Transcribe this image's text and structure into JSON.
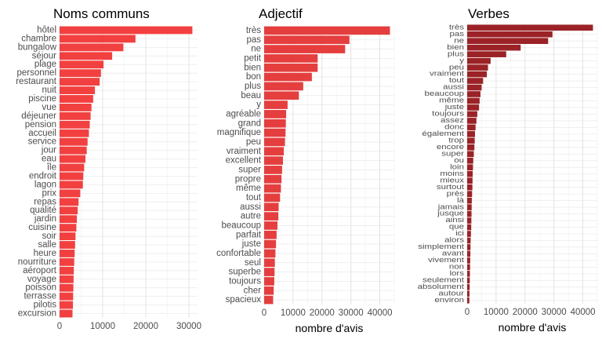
{
  "chart_data": [
    {
      "type": "bar",
      "orientation": "horizontal",
      "title": "Noms communs",
      "xlabel": "",
      "ylabel": "",
      "xlim": [
        0,
        32000
      ],
      "xticks": [
        0,
        10000,
        20000,
        30000
      ],
      "grid": true,
      "color": "#F24040",
      "categories": [
        "hôtel",
        "chambre",
        "bungalow",
        "séjour",
        "plage",
        "personnel",
        "restaurant",
        "nuit",
        "piscine",
        "vue",
        "déjeuner",
        "pension",
        "accueil",
        "service",
        "jour",
        "eau",
        "île",
        "endroit",
        "lagon",
        "prix",
        "repas",
        "qualité",
        "jardin",
        "cuisine",
        "soir",
        "salle",
        "heure",
        "nourriture",
        "aéroport",
        "voyage",
        "poisson",
        "terrasse",
        "pilotis",
        "excursion"
      ],
      "values": [
        30800,
        17600,
        14800,
        12200,
        10200,
        9600,
        9300,
        8200,
        7800,
        7400,
        7200,
        7000,
        6800,
        6500,
        6300,
        6000,
        5700,
        5500,
        5400,
        4800,
        4400,
        4200,
        4000,
        3900,
        3700,
        3600,
        3500,
        3400,
        3300,
        3250,
        3200,
        3150,
        3100,
        3000
      ]
    },
    {
      "type": "bar",
      "orientation": "horizontal",
      "title": "Adjectif",
      "xlabel": "nombre d'avis",
      "ylabel": "",
      "xlim": [
        0,
        45000
      ],
      "xticks": [
        0,
        10000,
        20000,
        30000,
        40000
      ],
      "grid": true,
      "color": "#E53E3E",
      "categories": [
        "très",
        "pas",
        "ne",
        "petit",
        "bien",
        "bon",
        "plus",
        "beau",
        "y",
        "agréable",
        "grand",
        "magnifique",
        "peu",
        "vraiment",
        "excellent",
        "super",
        "propre",
        "même",
        "tout",
        "aussi",
        "autre",
        "beaucoup",
        "parfait",
        "juste",
        "confortable",
        "seul",
        "superbe",
        "toujours",
        "cher",
        "spacieux"
      ],
      "values": [
        43500,
        29500,
        28000,
        18500,
        18500,
        16500,
        13500,
        12000,
        8100,
        7600,
        7500,
        7400,
        7200,
        6800,
        6500,
        6200,
        6000,
        5800,
        5500,
        5000,
        4900,
        4600,
        4300,
        4100,
        3900,
        3700,
        3600,
        3500,
        3300,
        3100
      ]
    },
    {
      "type": "bar",
      "orientation": "horizontal",
      "title": "Verbes",
      "xlabel": "nombre d'avis",
      "ylabel": "",
      "xlim": [
        0,
        45000
      ],
      "xticks": [
        0,
        10000,
        20000,
        30000,
        40000
      ],
      "grid": true,
      "color": "#9B2226",
      "categories": [
        "très",
        "pas",
        "ne",
        "bien",
        "plus",
        "y",
        "peu",
        "vraiment",
        "tout",
        "aussi",
        "beaucoup",
        "même",
        "juste",
        "toujours",
        "assez",
        "donc",
        "également",
        "trop",
        "encore",
        "super",
        "ou",
        "loin",
        "moins",
        "mieux",
        "surtout",
        "près",
        "là",
        "jamais",
        "jusque",
        "ainsi",
        "que",
        "ici",
        "alors",
        "simplement",
        "avant",
        "vivement",
        "non",
        "lors",
        "seulement",
        "absolument",
        "autour",
        "environ"
      ],
      "values": [
        43500,
        29500,
        28000,
        18500,
        13500,
        8100,
        7200,
        6800,
        5500,
        5000,
        4600,
        4300,
        4100,
        3500,
        3200,
        2900,
        2700,
        2600,
        2500,
        2300,
        2100,
        2000,
        1900,
        1850,
        1800,
        1700,
        1600,
        1550,
        1500,
        1450,
        1400,
        1300,
        1200,
        1150,
        1100,
        1050,
        1000,
        950,
        900,
        850,
        800,
        750
      ]
    }
  ]
}
